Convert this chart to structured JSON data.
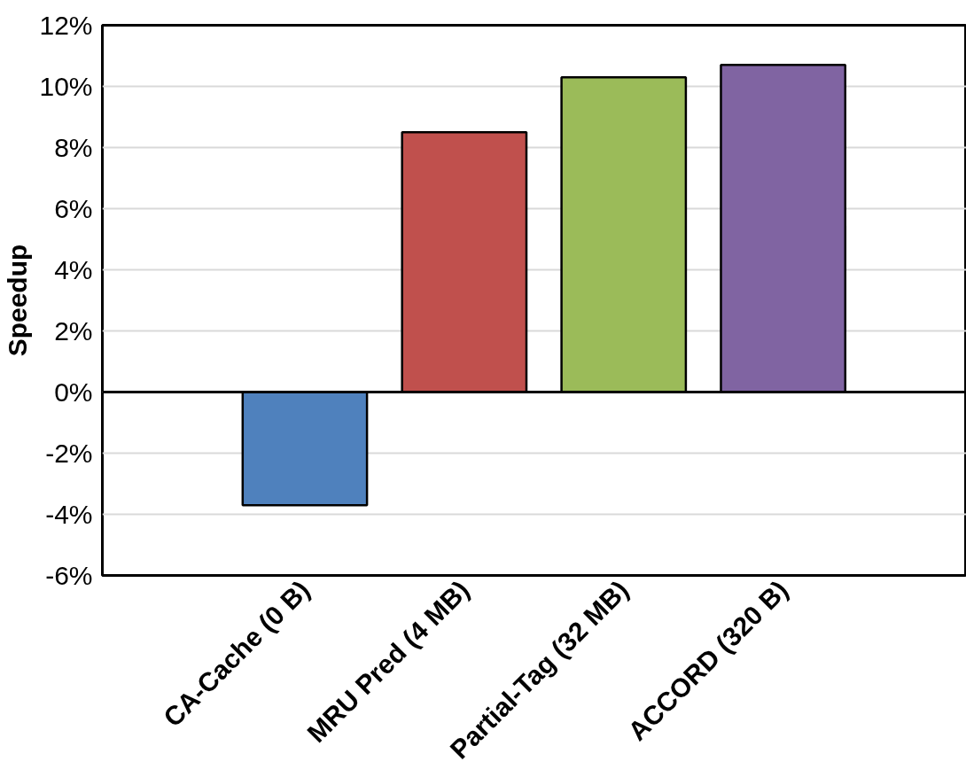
{
  "chart_data": {
    "type": "bar",
    "ylabel": "Speedup",
    "categories": [
      "CA-Cache (0 B)",
      "MRU Pred (4 MB)",
      "Partial-Tag (32 MB)",
      "ACCORD (320 B)"
    ],
    "values": [
      -3.7,
      8.5,
      10.3,
      10.7
    ],
    "colors": [
      "#4f81bd",
      "#c0504d",
      "#9bbb59",
      "#8064a2"
    ],
    "ylim": [
      -6,
      12
    ],
    "yticks": [
      {
        "value": -6,
        "label": "-6%"
      },
      {
        "value": -4,
        "label": "-4%"
      },
      {
        "value": -2,
        "label": "-2%"
      },
      {
        "value": 0,
        "label": "0%"
      },
      {
        "value": 2,
        "label": "2%"
      },
      {
        "value": 4,
        "label": "4%"
      },
      {
        "value": 6,
        "label": "6%"
      },
      {
        "value": 8,
        "label": "8%"
      },
      {
        "value": 10,
        "label": "10%"
      },
      {
        "value": 12,
        "label": "12%"
      }
    ],
    "grid": "y"
  }
}
